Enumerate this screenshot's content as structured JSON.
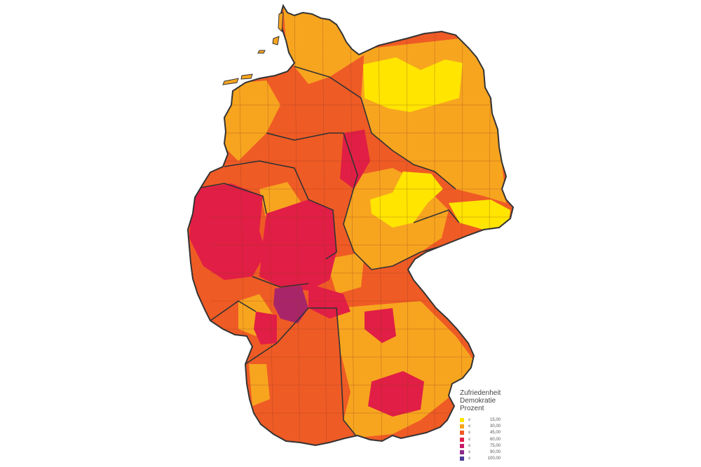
{
  "legend": {
    "title_lines": [
      "Zufriedenheit",
      "Demokratie",
      "Prozent"
    ],
    "classes": [
      {
        "op": "≤",
        "value": "15,00",
        "color": "#ffe500"
      },
      {
        "op": "≤",
        "value": "30,00",
        "color": "#f7a51f"
      },
      {
        "op": "≤",
        "value": "45,00",
        "color": "#ef5b25"
      },
      {
        "op": "≤",
        "value": "60,00",
        "color": "#e11e45"
      },
      {
        "op": "≤",
        "value": "75,00",
        "color": "#c81b6a"
      },
      {
        "op": "≤",
        "value": "90,00",
        "color": "#8e2a8a"
      },
      {
        "op": "≤",
        "value": "100,00",
        "color": "#4b3a96"
      }
    ]
  }
}
